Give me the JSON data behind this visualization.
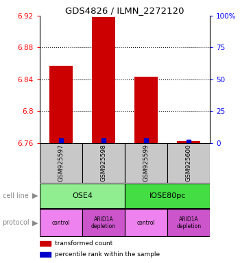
{
  "title": "GDS4826 / ILMN_2272120",
  "samples": [
    "GSM925597",
    "GSM925598",
    "GSM925599",
    "GSM925600"
  ],
  "red_values": [
    6.857,
    6.918,
    6.843,
    6.762
  ],
  "blue_percentiles": [
    2.0,
    2.0,
    2.0,
    1.0
  ],
  "ylim": [
    6.76,
    6.92
  ],
  "yticks": [
    6.76,
    6.8,
    6.84,
    6.88,
    6.92
  ],
  "ytick_labels": [
    "6.76",
    "6.8",
    "6.84",
    "6.88",
    "6.92"
  ],
  "right_yticks": [
    0,
    25,
    50,
    75,
    100
  ],
  "right_ytick_labels": [
    "0",
    "25",
    "50",
    "75",
    "100%"
  ],
  "cell_line_labels": [
    "OSE4",
    "IOSE80pc"
  ],
  "cell_line_colors": [
    "#90EE90",
    "#44DD44"
  ],
  "cell_line_spans": [
    [
      0,
      2
    ],
    [
      2,
      4
    ]
  ],
  "protocol_labels": [
    "control",
    "ARID1A\ndepletion",
    "control",
    "ARID1A\ndepletion"
  ],
  "protocol_colors": [
    "#EE82EE",
    "#CC55CC",
    "#EE82EE",
    "#CC55CC"
  ],
  "bar_color": "#CC0000",
  "blue_color": "#0000CC",
  "sample_box_color": "#C8C8C8",
  "legend_red_label": "transformed count",
  "legend_blue_label": "percentile rank within the sample",
  "row_label_cell_line": "cell line",
  "row_label_protocol": "protocol",
  "gridline_values": [
    6.8,
    6.84,
    6.88
  ]
}
